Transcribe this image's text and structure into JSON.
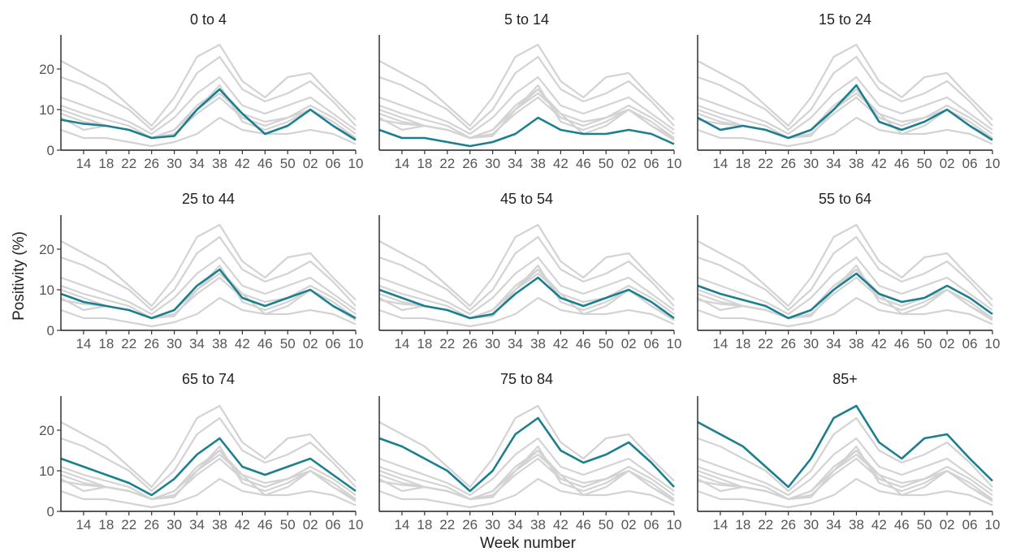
{
  "chart_data": {
    "type": "line",
    "layout": "3x3 small multiples",
    "ylabel": "Positivity (%)",
    "xlabel": "Week number",
    "ylim": [
      0,
      28
    ],
    "y_ticks": [
      0,
      10,
      20
    ],
    "x_ticks": [
      "14",
      "18",
      "22",
      "26",
      "30",
      "34",
      "38",
      "42",
      "46",
      "50",
      "02",
      "06",
      "10"
    ],
    "x_tick_positions_week_index": [
      4,
      8,
      12,
      16,
      20,
      24,
      28,
      32,
      36,
      40,
      44,
      48,
      52
    ],
    "x_range_week_index": [
      0,
      52
    ],
    "grid": false,
    "highlight_color": "#1a7f8e",
    "background_color": "#d3d3d3",
    "week_index": [
      0,
      4,
      8,
      12,
      16,
      20,
      24,
      28,
      32,
      36,
      40,
      44,
      48,
      52
    ],
    "panels": [
      {
        "title": "0 to 4",
        "values": [
          7.5,
          6.5,
          6,
          5,
          3,
          3.5,
          10,
          15,
          9,
          4,
          6,
          10,
          6,
          2.5
        ]
      },
      {
        "title": "5 to 14",
        "values": [
          5,
          3,
          3,
          2,
          1,
          2,
          4,
          8,
          5,
          4,
          4,
          5,
          4,
          1.5
        ]
      },
      {
        "title": "15 to 24",
        "values": [
          8,
          5,
          6,
          5,
          3,
          5,
          10,
          16,
          7,
          5,
          7,
          10,
          6,
          2.5
        ]
      },
      {
        "title": "25 to 44",
        "values": [
          9,
          7,
          6,
          5,
          3,
          5,
          11,
          15,
          8,
          6,
          8,
          10,
          6,
          3
        ]
      },
      {
        "title": "45 to 54",
        "values": [
          10,
          8,
          6,
          5,
          3,
          4,
          9,
          13,
          8,
          6,
          8,
          10,
          7,
          3
        ]
      },
      {
        "title": "55 to 64",
        "values": [
          11,
          9,
          7.5,
          6,
          3,
          5,
          10,
          14,
          9,
          7,
          8,
          11,
          8,
          4
        ]
      },
      {
        "title": "65 to 74",
        "values": [
          13,
          11,
          9,
          7,
          4,
          8,
          14,
          18,
          11,
          9,
          11,
          13,
          9,
          5
        ]
      },
      {
        "title": "75 to 84",
        "values": [
          18,
          16,
          13,
          10,
          5,
          10,
          19,
          23,
          15,
          12,
          14,
          17,
          12,
          6
        ]
      },
      {
        "title": "85+",
        "values": [
          22,
          19,
          16,
          11,
          6,
          13,
          23,
          26,
          17,
          13,
          18,
          19,
          13,
          7.5
        ]
      }
    ]
  }
}
